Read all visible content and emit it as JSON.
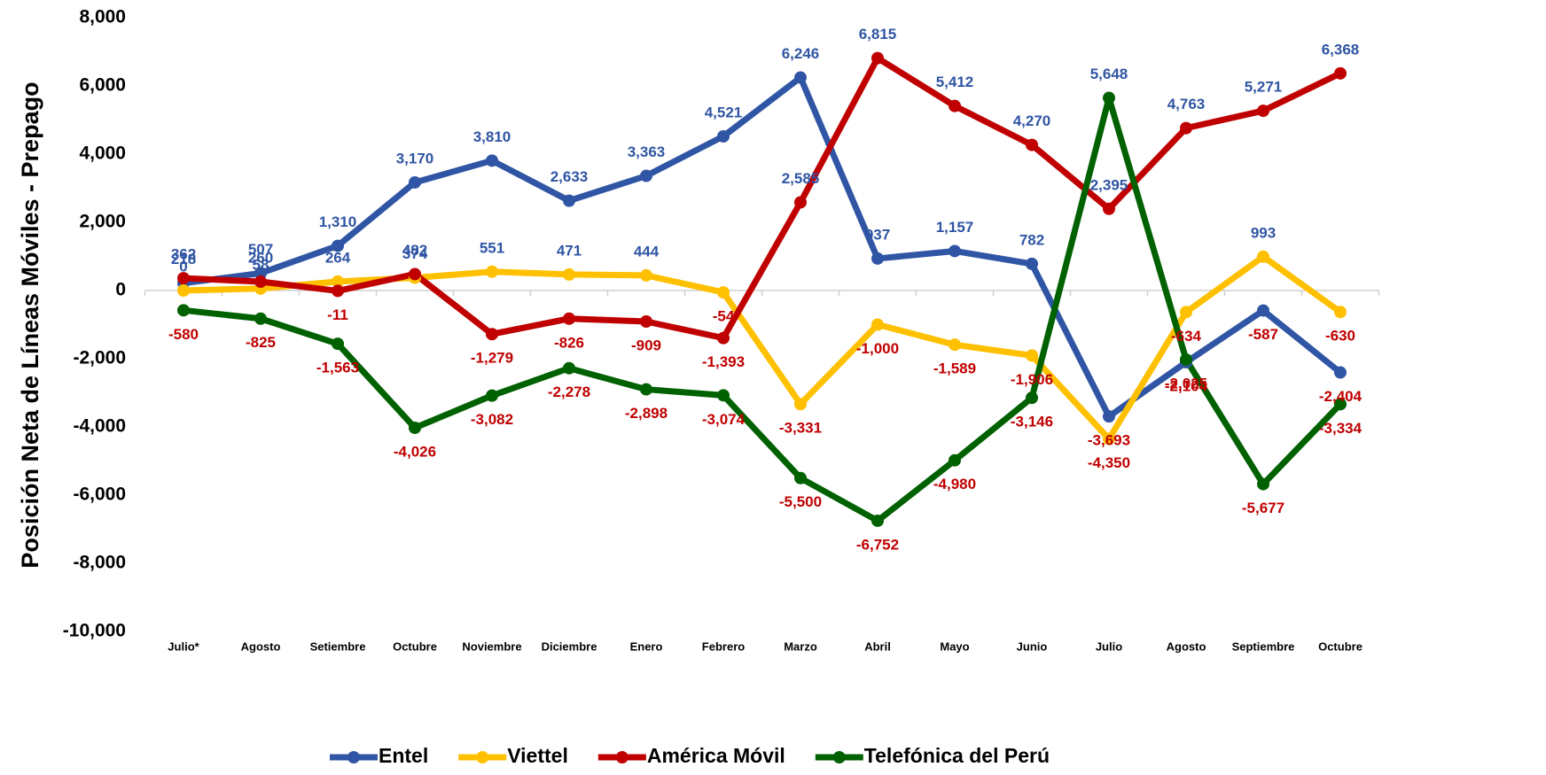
{
  "chart_data": {
    "type": "line",
    "y_label": "Posición Neta de Líneas Móviles - Prepago",
    "categories": [
      "Julio*",
      "Agosto",
      "Setiembre",
      "Octubre",
      "Noviembre",
      "Diciembre",
      "Enero",
      "Febrero",
      "Marzo",
      "Abril",
      "Mayo",
      "Junio",
      "Julio",
      "Agosto",
      "Septiembre",
      "Octubre"
    ],
    "series": [
      {
        "name": "Entel",
        "color": "#2f55a4",
        "values": [
          218,
          507,
          1310,
          3170,
          3810,
          2633,
          3363,
          4521,
          6246,
          937,
          1157,
          782,
          -3693,
          -2104,
          -587,
          -2404
        ],
        "value_labels": [
          "218",
          "507",
          "1,310",
          "3,170",
          "3,810",
          "2,633",
          "3,363",
          "4,521",
          "6,246",
          "937",
          "1,157",
          "782",
          "-3,693",
          "-2,104",
          "-587",
          "-2,404"
        ]
      },
      {
        "name": "Viettel",
        "color": "#ffc000",
        "values": [
          0,
          58,
          264,
          374,
          551,
          471,
          444,
          -54,
          -3331,
          -1000,
          -1589,
          -1906,
          -4350,
          -634,
          993,
          -630
        ],
        "value_labels": [
          "0",
          "58",
          "264",
          "374",
          "551",
          "471",
          "444",
          "-54",
          "-3,331",
          "-1,000",
          "-1,589",
          "-1,906",
          "-4,350",
          "-634",
          "993",
          "-630"
        ]
      },
      {
        "name": "América Móvil",
        "color": "#c00000",
        "values": [
          362,
          260,
          -11,
          482,
          -1279,
          -826,
          -909,
          -1393,
          2585,
          6815,
          5412,
          4270,
          2395,
          4763,
          5271,
          6368
        ],
        "value_labels": [
          "362",
          "260",
          "-11",
          "482",
          "-1,279",
          "-826",
          "-909",
          "-1,393",
          "2,585",
          "6,815",
          "5,412",
          "4,270",
          "2,395",
          "4,763",
          "5,271",
          "6,368"
        ]
      },
      {
        "name": "Telefónica del Perú",
        "color": "#006100",
        "values": [
          -580,
          -825,
          -1563,
          -4026,
          -3082,
          -2278,
          -2898,
          -3074,
          -5500,
          -6752,
          -4980,
          -3146,
          5648,
          -2025,
          -5677,
          -3334
        ],
        "value_labels": [
          "-580",
          "-825",
          "-1,563",
          "-4,026",
          "-3,082",
          "-2,278",
          "-2,898",
          "-3,074",
          "-5,500",
          "-6,752",
          "-4,980",
          "-3,146",
          "5,648",
          "-2,025",
          "-5,677",
          "-3,334"
        ]
      }
    ],
    "ylim": [
      -10000,
      8000
    ],
    "yticks": [
      {
        "value": -10000,
        "label": "-10,000"
      },
      {
        "value": -8000,
        "label": "-8,000"
      },
      {
        "value": -6000,
        "label": "-6,000"
      },
      {
        "value": -4000,
        "label": "-4,000"
      },
      {
        "value": -2000,
        "label": "-2,000"
      },
      0,
      {
        "value": 2000,
        "label": "2,000"
      },
      {
        "value": 4000,
        "label": "4,000"
      },
      {
        "value": 6000,
        "label": "6,000"
      },
      {
        "value": 8000,
        "label": "8,000"
      }
    ],
    "grid": false,
    "legend": "bottom"
  }
}
